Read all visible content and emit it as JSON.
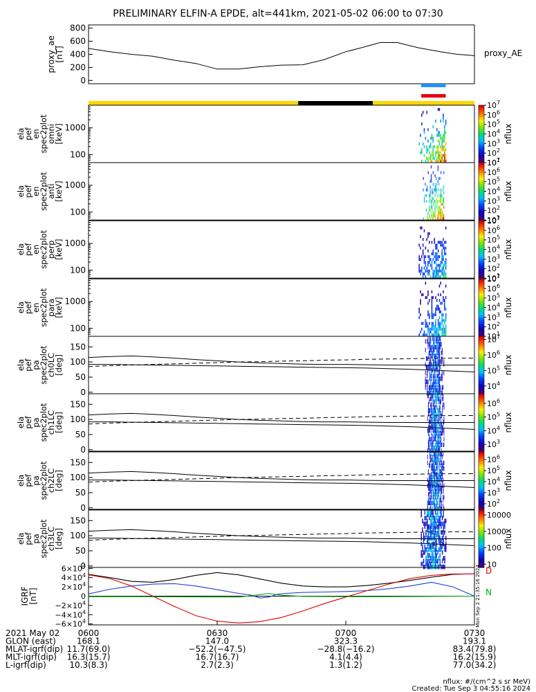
{
  "title": "PRELIMINARY ELFIN-A EPDE, alt=441km, 2021-05-02 06:00 to 07:30",
  "colors": {
    "yellow": "#ffd700",
    "black": "#000000",
    "blue": "#1e90ff",
    "red": "#e8000b",
    "green": "#00b000"
  },
  "chart_data": [
    {
      "type": "line",
      "name": "proxy_ae",
      "ylabel": "proxy_ae\n[nT]",
      "right_label": "proxy_AE",
      "ylim": [
        -50,
        850
      ],
      "yticks": [
        0,
        200,
        400,
        600,
        800
      ],
      "x": [
        0,
        5,
        10,
        15,
        20,
        25,
        30,
        35,
        40,
        45,
        50,
        55,
        60,
        63,
        68,
        72,
        77,
        82,
        86,
        90
      ],
      "values": [
        490,
        440,
        400,
        370,
        310,
        260,
        175,
        175,
        210,
        235,
        240,
        320,
        440,
        490,
        580,
        580,
        500,
        440,
        400,
        380
      ]
    },
    {
      "type": "bar",
      "name": "status_bar",
      "segments": [
        {
          "from": 0,
          "to": 48.9,
          "color": "#ffd700"
        },
        {
          "from": 48.9,
          "to": 66.3,
          "color": "#000000"
        },
        {
          "from": 66.3,
          "to": 90,
          "color": "#ffd700"
        }
      ],
      "markers": [
        {
          "from": 77.6,
          "to": 83.3,
          "color": "#1e90ff"
        },
        {
          "from": 77.6,
          "to": 83.3,
          "color": "#e8000b"
        }
      ]
    },
    {
      "type": "heatmap",
      "name": "omni",
      "ylabel": [
        "ela",
        "pef",
        "en",
        "spec2plot",
        "omni",
        "[keV]"
      ],
      "yscale": "log",
      "yticks": [
        100,
        1000
      ],
      "ylim": [
        50,
        7000
      ],
      "cbar_label": "nflux",
      "cbar_ticks": [
        "10^7",
        "10^6",
        "10^5",
        "10^4",
        "10^3",
        "10^2",
        "10^1"
      ],
      "cbar_range": [
        1,
        7
      ],
      "active": [
        77.0,
        83.5
      ],
      "peak": 7
    },
    {
      "type": "heatmap",
      "name": "anti",
      "ylabel": [
        "ela",
        "pef",
        "en",
        "spec2plot",
        "anti",
        "[keV]"
      ],
      "yscale": "log",
      "yticks": [
        100,
        1000
      ],
      "ylim": [
        50,
        7000
      ],
      "cbar_label": "nflux",
      "cbar_ticks": [
        "10^7",
        "10^6",
        "10^5",
        "10^4",
        "10^3",
        "10^2",
        "10^1"
      ],
      "cbar_range": [
        1,
        7
      ],
      "active": [
        78.0,
        83.0
      ],
      "peak": 7
    },
    {
      "type": "heatmap",
      "name": "perp",
      "ylabel": [
        "ela",
        "pef",
        "en",
        "spec2plot",
        "perp",
        "[keV]"
      ],
      "yscale": "log",
      "yticks": [
        100,
        1000
      ],
      "ylim": [
        50,
        7000
      ],
      "cbar_label": "nflux",
      "cbar_ticks": [
        "10^7",
        "10^6",
        "10^5",
        "10^4",
        "10^3",
        "10^2",
        "10^1"
      ],
      "cbar_range": [
        1,
        7
      ],
      "active": [
        77.0,
        83.5
      ],
      "peak": 4
    },
    {
      "type": "heatmap",
      "name": "para",
      "ylabel": [
        "ela",
        "pef",
        "en",
        "spec2plot",
        "para",
        "[keV]"
      ],
      "yscale": "log",
      "yticks": [
        100,
        1000
      ],
      "ylim": [
        50,
        7000
      ],
      "cbar_label": "nflux",
      "cbar_ticks": [
        "10^7",
        "10^6",
        "10^5",
        "10^4",
        "10^3",
        "10^2",
        "10^1"
      ],
      "cbar_range": [
        1,
        7
      ],
      "active": [
        77.0,
        83.5
      ],
      "peak": 4
    },
    {
      "type": "heatmap",
      "name": "ch0LC",
      "ylabel": [
        "ela",
        "pef",
        "pa",
        "spec2plot",
        "ch0LC",
        "[deg]"
      ],
      "ylim": [
        -5,
        185
      ],
      "yticks": [
        0,
        50,
        100,
        150
      ],
      "cbar_label": "nflux",
      "cbar_ticks": [
        "10^7",
        "10^6",
        "10^5",
        "10^4"
      ],
      "cbar_range": [
        3.5,
        7.2
      ],
      "active": [
        78.5,
        83.0
      ],
      "peak": 5,
      "lines": {
        "x": [
          0,
          5,
          10,
          15,
          20,
          25,
          30,
          35,
          40,
          45,
          50,
          55,
          60,
          65,
          70,
          75,
          80,
          85,
          90
        ],
        "solid1": [
          115,
          118,
          120,
          117,
          113,
          108,
          104,
          100,
          97,
          95,
          93,
          92,
          92,
          91,
          90,
          90,
          90,
          90,
          90
        ],
        "solid2": [
          92,
          92,
          91,
          90,
          89,
          88,
          87,
          86,
          85,
          84,
          83,
          82,
          81,
          80,
          78,
          76,
          73,
          70,
          67
        ],
        "dashed": [
          85,
          88,
          90,
          92,
          94,
          96,
          98,
          100,
          101,
          103,
          104,
          106,
          107,
          109,
          110,
          111,
          112,
          113,
          113
        ]
      }
    },
    {
      "type": "heatmap",
      "name": "ch1LC",
      "ylabel": [
        "ela",
        "pef",
        "pa",
        "spec2plot",
        "ch1LC",
        "[deg]"
      ],
      "ylim": [
        -5,
        185
      ],
      "yticks": [
        0,
        50,
        100,
        150
      ],
      "cbar_label": "nflux",
      "cbar_ticks": [
        "10^6",
        "10^5",
        "10^4",
        "10^3"
      ],
      "cbar_range": [
        2.5,
        6.7
      ],
      "active": [
        79.0,
        83.0
      ],
      "peak": 4.5,
      "lines": {
        "x": [
          0,
          5,
          10,
          15,
          20,
          25,
          30,
          35,
          40,
          45,
          50,
          55,
          60,
          65,
          70,
          75,
          80,
          85,
          90
        ],
        "solid1": [
          115,
          118,
          120,
          117,
          113,
          108,
          104,
          100,
          97,
          95,
          93,
          92,
          92,
          91,
          90,
          90,
          90,
          90,
          90
        ],
        "solid2": [
          92,
          92,
          91,
          90,
          89,
          88,
          87,
          86,
          85,
          84,
          83,
          82,
          81,
          80,
          78,
          76,
          73,
          70,
          67
        ],
        "dashed": [
          85,
          88,
          90,
          92,
          94,
          96,
          98,
          100,
          101,
          103,
          104,
          106,
          107,
          109,
          110,
          111,
          112,
          113,
          113
        ]
      }
    },
    {
      "type": "heatmap",
      "name": "ch2LC",
      "ylabel": [
        "ela",
        "pef",
        "pa",
        "spec2plot",
        "ch2LC",
        "[deg]"
      ],
      "ylim": [
        -5,
        185
      ],
      "yticks": [
        0,
        50,
        100,
        150
      ],
      "cbar_label": "nflux",
      "cbar_ticks": [
        "10^6",
        "10^5",
        "10^4",
        "10^3",
        "10^2"
      ],
      "cbar_range": [
        1.5,
        6.7
      ],
      "active": [
        79.0,
        83.0
      ],
      "peak": 4,
      "lines": {
        "x": [
          0,
          5,
          10,
          15,
          20,
          25,
          30,
          35,
          40,
          45,
          50,
          55,
          60,
          65,
          70,
          75,
          80,
          85,
          90
        ],
        "solid1": [
          115,
          118,
          120,
          117,
          113,
          108,
          104,
          100,
          97,
          95,
          93,
          92,
          92,
          91,
          90,
          90,
          90,
          90,
          90
        ],
        "solid2": [
          92,
          92,
          91,
          90,
          89,
          88,
          87,
          86,
          85,
          84,
          83,
          82,
          81,
          80,
          78,
          76,
          73,
          70,
          67
        ],
        "dashed": [
          85,
          88,
          90,
          92,
          94,
          96,
          98,
          100,
          101,
          103,
          104,
          106,
          107,
          109,
          110,
          111,
          112,
          113,
          113
        ]
      }
    },
    {
      "type": "heatmap",
      "name": "ch3LC",
      "ylabel": [
        "ela",
        "pef",
        "pa",
        "spec2plot",
        "ch3LC",
        "[deg]"
      ],
      "ylim": [
        -5,
        185
      ],
      "yticks": [
        0,
        50,
        100,
        150
      ],
      "cbar_label": "nflux",
      "cbar_ticks": [
        "10000",
        "1000",
        "100",
        "10"
      ],
      "cbar_range": [
        0.8,
        4.3
      ],
      "active": [
        77.5,
        83.5
      ],
      "peak": 2.5,
      "lines": {
        "x": [
          0,
          5,
          10,
          15,
          20,
          25,
          30,
          35,
          40,
          45,
          50,
          55,
          60,
          65,
          70,
          75,
          80,
          85,
          90
        ],
        "solid1": [
          115,
          118,
          120,
          117,
          113,
          108,
          104,
          100,
          97,
          95,
          93,
          92,
          92,
          91,
          90,
          90,
          90,
          90,
          90
        ],
        "solid2": [
          92,
          92,
          91,
          90,
          89,
          88,
          87,
          86,
          85,
          84,
          83,
          82,
          81,
          80,
          78,
          76,
          73,
          70,
          67
        ],
        "dashed": [
          85,
          88,
          90,
          92,
          94,
          96,
          98,
          100,
          101,
          103,
          104,
          106,
          107,
          109,
          110,
          111,
          112,
          113,
          113
        ]
      }
    },
    {
      "type": "line",
      "name": "IGRF",
      "ylabel": "IGRF\n[nT]",
      "ylim": [
        -62000,
        62000
      ],
      "yticks": [
        60000,
        40000,
        20000,
        0,
        -20000,
        -40000,
        -60000
      ],
      "ytick_labels": [
        "6×10^4",
        "4×10^4",
        "2×10^4",
        "0",
        "−2×10^4",
        "−4×10^4",
        "−6×10^4"
      ],
      "legend": [
        "D",
        "N"
      ],
      "side_note": "Mon Sep 2 21:35:16 2024",
      "series": [
        {
          "name": "total",
          "color": "#000000",
          "x": [
            0,
            5,
            10,
            15,
            20,
            25,
            30,
            35,
            40,
            45,
            50,
            55,
            60,
            65,
            70,
            75,
            80,
            85,
            88,
            90
          ],
          "values": [
            47000,
            40000,
            32000,
            30000,
            36000,
            45000,
            51000,
            46000,
            37000,
            28000,
            22000,
            20000,
            20000,
            23000,
            28000,
            34000,
            41000,
            47000,
            48000,
            48000
          ]
        },
        {
          "name": "blue",
          "color": "#1e3cd7",
          "x": [
            0,
            5,
            10,
            15,
            20,
            25,
            30,
            35,
            38,
            40,
            42,
            44,
            46,
            50,
            55,
            60,
            65,
            70,
            75,
            80,
            85,
            90
          ],
          "values": [
            5000,
            15000,
            22000,
            26000,
            27000,
            22000,
            14000,
            6000,
            2000,
            -4000,
            -2000,
            4000,
            6000,
            8000,
            9000,
            10000,
            12000,
            16000,
            22000,
            30000,
            20000,
            0
          ]
        },
        {
          "name": "red",
          "color": "#dd0000",
          "x": [
            0,
            5,
            10,
            15,
            20,
            25,
            30,
            35,
            40,
            45,
            50,
            55,
            60,
            65,
            70,
            75,
            80,
            85,
            88,
            90
          ],
          "values": [
            46000,
            38000,
            22000,
            0,
            -22000,
            -42000,
            -54000,
            -58000,
            -55000,
            -46000,
            -32000,
            -16000,
            -2000,
            12000,
            26000,
            38000,
            45000,
            48000,
            48000,
            48000
          ]
        },
        {
          "name": "green",
          "color": "#00b000",
          "x": [
            0,
            10,
            20,
            30,
            35,
            38,
            40,
            42,
            45,
            50,
            60,
            70,
            80,
            90
          ],
          "values": [
            -1000,
            -1000,
            -1500,
            -2000,
            -2000,
            1000,
            3500,
            6000,
            2000,
            -500,
            -1000,
            -1000,
            -500,
            0
          ]
        }
      ]
    }
  ],
  "xaxis": {
    "tick_x": [
      0,
      30,
      60,
      90
    ],
    "rows": [
      {
        "label": "2021 May 02",
        "values": [
          "0600",
          "0630",
          "0700",
          "0730"
        ]
      },
      {
        "label": "GLON (east)",
        "values": [
          "168.1",
          "147.0",
          "323.3",
          "193.1"
        ]
      },
      {
        "label": "MLAT-igrf(dip)",
        "values": [
          "11.7(69.0)",
          "−52.2(−47.5)",
          "−28.8(−16.2)",
          "83.4(79.8)"
        ]
      },
      {
        "label": "MLT-igrf(dip)",
        "values": [
          "16.3(15.7)",
          "16.7(16.7)",
          "4.1(4.4)",
          "16.2(15.9)"
        ]
      },
      {
        "label": "L-igrf(dip)",
        "values": [
          "10.3(8.3)",
          "2.7(2.3)",
          "1.3(1.2)",
          "77.0(34.2)"
        ]
      }
    ]
  },
  "footer": {
    "units": "nflux: #/(cm^2 s sr MeV)",
    "created": "Created: Tue Sep  3 04:55:16 2024"
  }
}
